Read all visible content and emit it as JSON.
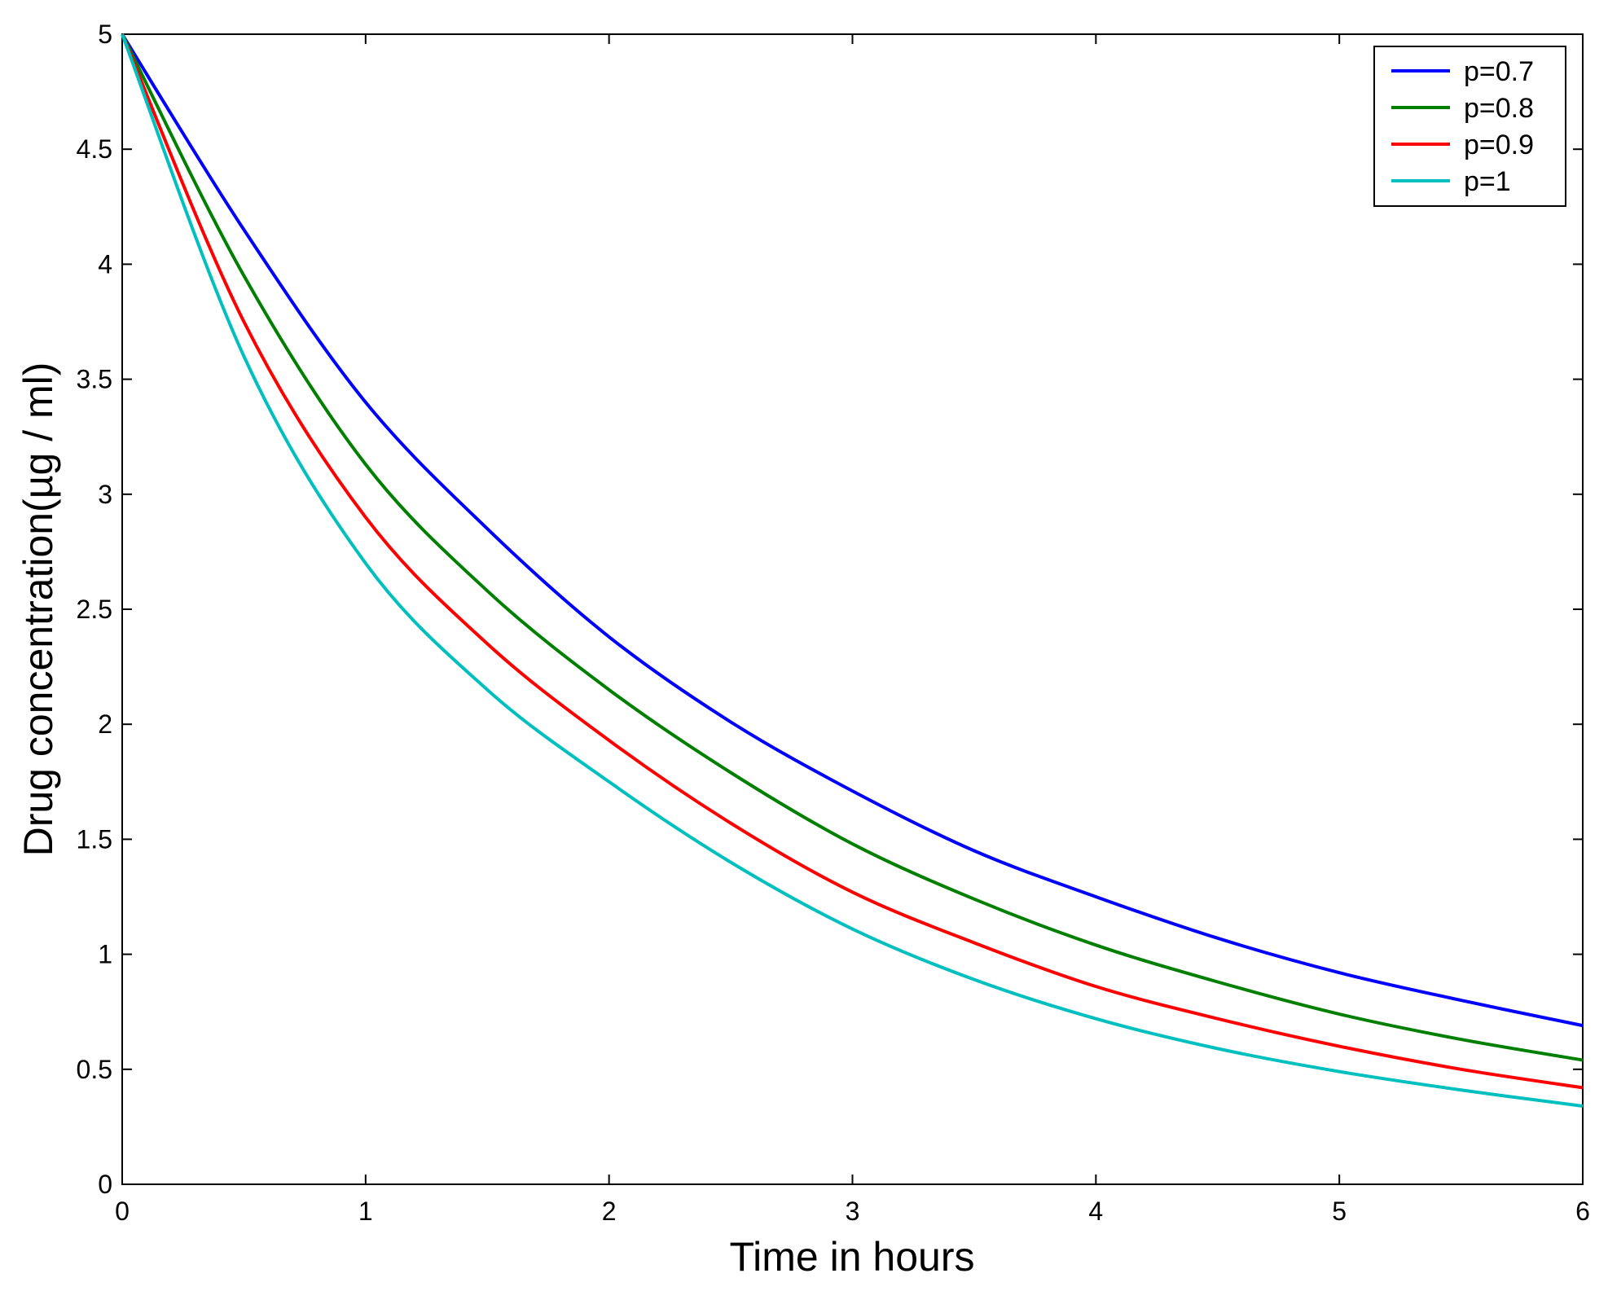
{
  "chart_data": {
    "type": "line",
    "title": "",
    "xlabel": "Time in hours",
    "ylabel": "Drug concentration(µg / ml)",
    "xlim": [
      0,
      6
    ],
    "ylim": [
      0,
      5
    ],
    "xticks": [
      0,
      1,
      2,
      3,
      4,
      5,
      6
    ],
    "yticks": [
      0,
      0.5,
      1,
      1.5,
      2,
      2.5,
      3,
      3.5,
      4,
      4.5,
      5
    ],
    "xtick_labels": [
      "0",
      "1",
      "2",
      "3",
      "4",
      "5",
      "6"
    ],
    "ytick_labels": [
      "0",
      "0.5",
      "1",
      "1.5",
      "2",
      "2.5",
      "3",
      "3.5",
      "4",
      "4.5",
      "5"
    ],
    "grid": false,
    "legend_position": "top-right",
    "x": [
      0,
      0.5,
      1,
      1.5,
      2,
      2.5,
      3,
      3.5,
      4,
      4.5,
      5,
      5.5,
      6
    ],
    "series": [
      {
        "name": "p=0.7",
        "color": "#0000ff",
        "values": [
          5,
          4.15,
          3.4,
          2.85,
          2.38,
          2.01,
          1.71,
          1.45,
          1.25,
          1.07,
          0.92,
          0.8,
          0.69
        ]
      },
      {
        "name": "p=0.8",
        "color": "#007f00",
        "values": [
          5,
          3.95,
          3.13,
          2.58,
          2.15,
          1.79,
          1.48,
          1.24,
          1.04,
          0.88,
          0.74,
          0.63,
          0.54
        ]
      },
      {
        "name": "p=0.9",
        "color": "#ff0000",
        "values": [
          5,
          3.75,
          2.9,
          2.35,
          1.93,
          1.57,
          1.27,
          1.05,
          0.86,
          0.72,
          0.6,
          0.5,
          0.42
        ]
      },
      {
        "name": "p=1",
        "color": "#00bfbf",
        "values": [
          5,
          3.6,
          2.7,
          2.15,
          1.75,
          1.4,
          1.11,
          0.89,
          0.72,
          0.59,
          0.49,
          0.41,
          0.34
        ]
      }
    ]
  }
}
